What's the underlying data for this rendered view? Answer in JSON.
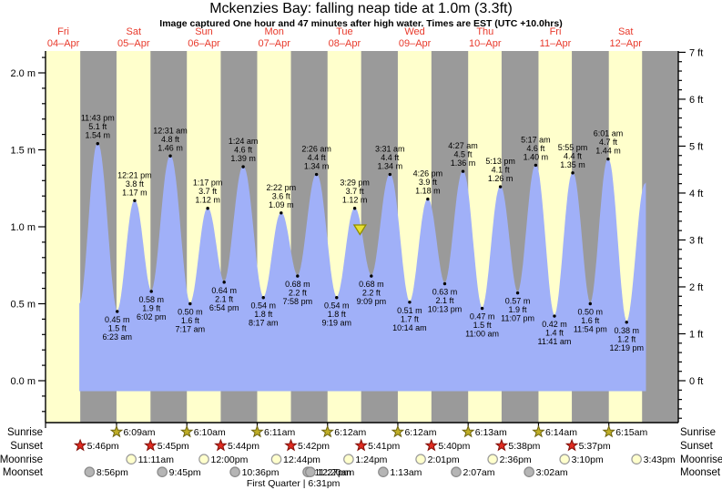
{
  "header": {
    "title": "Mckenzies Bay: falling  neap tide at 1.0m (3.3ft)",
    "subtitle": "Image captured One hour and 47 minutes after high water. Times are EST (UTC +10.0hrs)"
  },
  "chart_data": {
    "type": "area",
    "title": "Mckenzies Bay: falling  neap tide at 1.0m (3.3ft)",
    "subtitle": "Image captured One hour and 47 minutes after high water. Times are EST (UTC +10.0hrs)",
    "days": [
      {
        "name": "Fri",
        "date": "04–Apr"
      },
      {
        "name": "Sat",
        "date": "05–Apr"
      },
      {
        "name": "Sun",
        "date": "06–Apr"
      },
      {
        "name": "Mon",
        "date": "07–Apr"
      },
      {
        "name": "Tue",
        "date": "08–Apr"
      },
      {
        "name": "Wed",
        "date": "09–Apr"
      },
      {
        "name": "Thu",
        "date": "10–Apr"
      },
      {
        "name": "Fri",
        "date": "11–Apr"
      },
      {
        "name": "Sat",
        "date": "12–Apr"
      }
    ],
    "y_axis_left": {
      "unit": "m",
      "tick_labels": [
        "0.0 m",
        "0.5 m",
        "1.0 m",
        "1.5 m",
        "2.0 m"
      ],
      "tick_values": [
        0,
        0.5,
        1,
        1.5,
        2
      ],
      "minor_step": 0.1
    },
    "y_axis_right": {
      "unit": "ft",
      "tick_labels": [
        "0 ft",
        "1 ft",
        "2 ft",
        "3 ft",
        "4 ft",
        "5 ft",
        "6 ft",
        "7 ft"
      ],
      "tick_values": [
        0,
        1,
        2,
        3,
        4,
        5,
        6,
        7
      ],
      "minor_step": 0.2
    },
    "tide_extremes": [
      {
        "day": 0,
        "type": "high",
        "time": "11:43 pm",
        "height_m": 1.54,
        "label_m": "1.54 m",
        "label_ft": "5.1 ft"
      },
      {
        "day": 1,
        "type": "low",
        "time": "6:23 am",
        "height_m": 0.45,
        "label_m": "0.45 m",
        "label_ft": "1.5 ft"
      },
      {
        "day": 1,
        "type": "high",
        "time": "12:21 pm",
        "height_m": 1.17,
        "label_m": "1.17 m",
        "label_ft": "3.8 ft"
      },
      {
        "day": 1,
        "type": "low",
        "time": "6:02 pm",
        "height_m": 0.58,
        "label_m": "0.58 m",
        "label_ft": "1.9 ft"
      },
      {
        "day": 2,
        "type": "high",
        "time": "12:31 am",
        "height_m": 1.46,
        "label_m": "1.46 m",
        "label_ft": "4.8 ft"
      },
      {
        "day": 2,
        "type": "low",
        "time": "7:17 am",
        "height_m": 0.5,
        "label_m": "0.50 m",
        "label_ft": "1.6 ft"
      },
      {
        "day": 2,
        "type": "high",
        "time": "1:17 pm",
        "height_m": 1.12,
        "label_m": "1.12 m",
        "label_ft": "3.7 ft"
      },
      {
        "day": 2,
        "type": "low",
        "time": "6:54 pm",
        "height_m": 0.64,
        "label_m": "0.64 m",
        "label_ft": "2.1 ft"
      },
      {
        "day": 3,
        "type": "high",
        "time": "1:24 am",
        "height_m": 1.39,
        "label_m": "1.39 m",
        "label_ft": "4.6 ft"
      },
      {
        "day": 3,
        "type": "low",
        "time": "8:17 am",
        "height_m": 0.54,
        "label_m": "0.54 m",
        "label_ft": "1.8 ft"
      },
      {
        "day": 3,
        "type": "high",
        "time": "2:22 pm",
        "height_m": 1.09,
        "label_m": "1.09 m",
        "label_ft": "3.6 ft"
      },
      {
        "day": 3,
        "type": "low",
        "time": "7:58 pm",
        "height_m": 0.68,
        "label_m": "0.68 m",
        "label_ft": "2.2 ft"
      },
      {
        "day": 4,
        "type": "high",
        "time": "2:26 am",
        "height_m": 1.34,
        "label_m": "1.34 m",
        "label_ft": "4.4 ft"
      },
      {
        "day": 4,
        "type": "low",
        "time": "9:19 am",
        "height_m": 0.54,
        "label_m": "0.54 m",
        "label_ft": "1.8 ft"
      },
      {
        "day": 4,
        "type": "high",
        "time": "3:29 pm",
        "height_m": 1.12,
        "label_m": "1.12 m",
        "label_ft": "3.7 ft"
      },
      {
        "day": 4,
        "type": "low",
        "time": "9:09 pm",
        "height_m": 0.68,
        "label_m": "0.68 m",
        "label_ft": "2.2 ft"
      },
      {
        "day": 5,
        "type": "high",
        "time": "3:31 am",
        "height_m": 1.34,
        "label_m": "1.34 m",
        "label_ft": "4.4 ft"
      },
      {
        "day": 5,
        "type": "low",
        "time": "10:14 am",
        "height_m": 0.51,
        "label_m": "0.51 m",
        "label_ft": "1.7 ft"
      },
      {
        "day": 5,
        "type": "high",
        "time": "4:26 pm",
        "height_m": 1.18,
        "label_m": "1.18 m",
        "label_ft": "3.9 ft"
      },
      {
        "day": 5,
        "type": "low",
        "time": "10:13 pm",
        "height_m": 0.63,
        "label_m": "0.63 m",
        "label_ft": "2.1 ft"
      },
      {
        "day": 6,
        "type": "high",
        "time": "4:27 am",
        "height_m": 1.36,
        "label_m": "1.36 m",
        "label_ft": "4.5 ft"
      },
      {
        "day": 6,
        "type": "low",
        "time": "11:00 am",
        "height_m": 0.47,
        "label_m": "0.47 m",
        "label_ft": "1.5 ft"
      },
      {
        "day": 6,
        "type": "high",
        "time": "5:13 pm",
        "height_m": 1.26,
        "label_m": "1.26 m",
        "label_ft": "4.1 ft"
      },
      {
        "day": 6,
        "type": "low",
        "time": "11:07 pm",
        "height_m": 0.57,
        "label_m": "0.57 m",
        "label_ft": "1.9 ft"
      },
      {
        "day": 7,
        "type": "high",
        "time": "5:17 am",
        "height_m": 1.4,
        "label_m": "1.40 m",
        "label_ft": "4.6 ft"
      },
      {
        "day": 7,
        "type": "low",
        "time": "11:41 am",
        "height_m": 0.42,
        "label_m": "0.42 m",
        "label_ft": "1.4 ft"
      },
      {
        "day": 7,
        "type": "high",
        "time": "5:55 pm",
        "height_m": 1.35,
        "label_m": "1.35 m",
        "label_ft": "4.4 ft"
      },
      {
        "day": 7,
        "type": "low",
        "time": "11:54 pm",
        "height_m": 0.5,
        "label_m": "0.50 m",
        "label_ft": "1.6 ft"
      },
      {
        "day": 8,
        "type": "high",
        "time": "6:01 am",
        "height_m": 1.44,
        "label_m": "1.44 m",
        "label_ft": "4.7 ft"
      },
      {
        "day": 8,
        "type": "low",
        "time": "12:19 pm",
        "height_m": 0.38,
        "label_m": "0.38 m",
        "label_ft": "1.2 ft"
      }
    ],
    "current_marker": {
      "day": 4,
      "time": "5:16 pm",
      "height_m": 1.0,
      "note": "falling neap tide at 1.0m (3.3ft)"
    },
    "sun_moon": {
      "rows": [
        {
          "label": "Sunrise",
          "icon": "sunrise-star",
          "events": [
            {
              "day": 1,
              "time": "6:09am"
            },
            {
              "day": 2,
              "time": "6:10am"
            },
            {
              "day": 3,
              "time": "6:11am"
            },
            {
              "day": 4,
              "time": "6:12am"
            },
            {
              "day": 5,
              "time": "6:12am"
            },
            {
              "day": 6,
              "time": "6:13am"
            },
            {
              "day": 7,
              "time": "6:14am"
            },
            {
              "day": 8,
              "time": "6:15am"
            }
          ]
        },
        {
          "label": "Sunset",
          "icon": "sunset-star",
          "events": [
            {
              "day": 0,
              "time": "5:46pm"
            },
            {
              "day": 1,
              "time": "5:45pm"
            },
            {
              "day": 2,
              "time": "5:44pm"
            },
            {
              "day": 3,
              "time": "5:42pm"
            },
            {
              "day": 4,
              "time": "5:41pm"
            },
            {
              "day": 5,
              "time": "5:40pm"
            },
            {
              "day": 6,
              "time": "5:38pm"
            },
            {
              "day": 7,
              "time": "5:37pm"
            }
          ]
        },
        {
          "label": "Moonrise",
          "icon": "moonrise-circle",
          "events": [
            {
              "day": 1,
              "time": "11:11am"
            },
            {
              "day": 2,
              "time": "12:00pm"
            },
            {
              "day": 3,
              "time": "12:44pm"
            },
            {
              "day": 4,
              "time": "1:24pm"
            },
            {
              "day": 5,
              "time": "2:01pm"
            },
            {
              "day": 6,
              "time": "2:36pm"
            },
            {
              "day": 7,
              "time": "3:10pm"
            },
            {
              "day": 8,
              "time": "3:43pm"
            }
          ]
        },
        {
          "label": "Moonset",
          "icon": "moonset-circle",
          "events": [
            {
              "day": 0,
              "time": "8:56pm"
            },
            {
              "day": 1,
              "time": "9:45pm"
            },
            {
              "day": 2,
              "time": "10:36pm"
            },
            {
              "day": 3,
              "time": "11:27pm"
            },
            {
              "day": 4,
              "time": "12:20am"
            },
            {
              "day": 5,
              "time": "1:13am"
            },
            {
              "day": 6,
              "time": "2:07am"
            },
            {
              "day": 7,
              "time": "3:02am"
            }
          ]
        }
      ],
      "moon_phase": {
        "text": "First Quarter | 6:31pm",
        "day": 3,
        "time": "6:31pm"
      }
    },
    "colors": {
      "day_band": "#ffffcc",
      "night_band": "#9a9a9a",
      "tide_fill": "#a0b0f8",
      "label_red": "#e8392b",
      "axis": "#000000",
      "sunrise_star_fill": "#bfae26",
      "sunrise_star_stroke": "#6e6410",
      "sunset_star_fill": "#df2b20",
      "sunset_star_stroke": "#7e100a",
      "moonrise_fill": "#ffffcc",
      "moonrise_stroke": "#999999",
      "moonset_fill": "#b5b5b5",
      "moonset_stroke": "#8a8a8a",
      "marker_fill": "#e8e032",
      "marker_stroke": "#8f8c00"
    }
  }
}
